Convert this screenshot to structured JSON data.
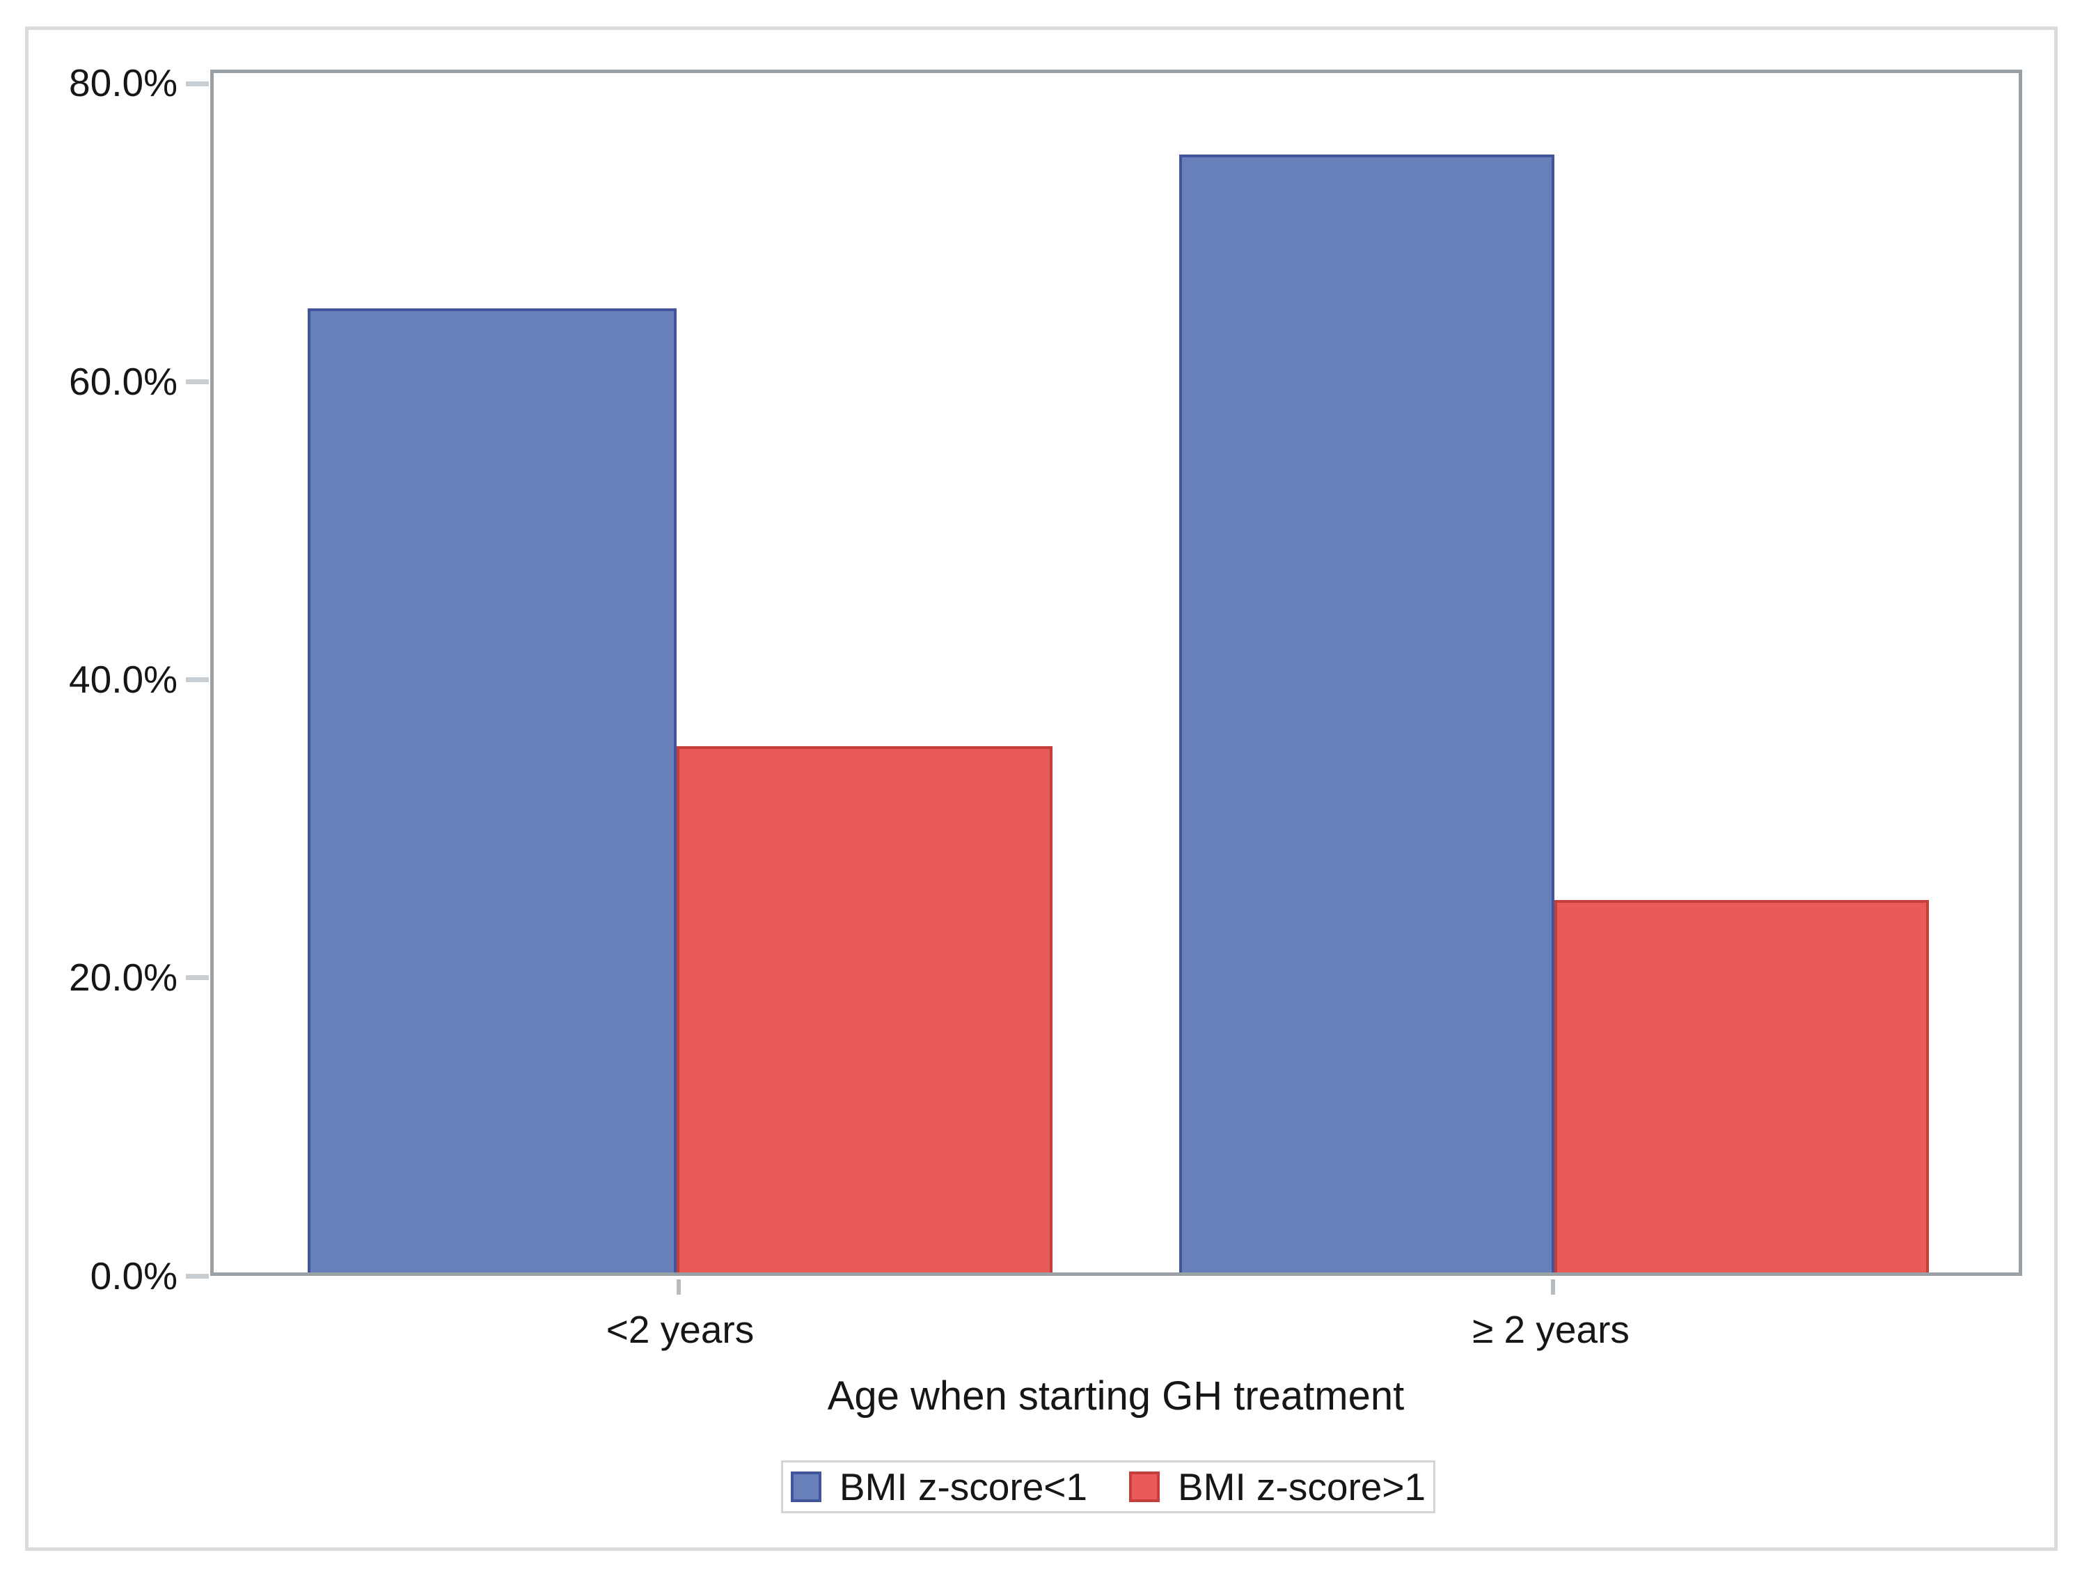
{
  "chart_data": {
    "type": "bar",
    "title": "",
    "categories": [
      "<2 years",
      "≥ 2 years"
    ],
    "series": [
      {
        "name": "BMI z-score<1",
        "color": "#6880ba",
        "border_color": "#44549c",
        "values": [
          64.7,
          75.0
        ]
      },
      {
        "name": "BMI z-score>1",
        "color": "#ea5a58",
        "border_color": "#c33f3c",
        "values": [
          35.3,
          25.0
        ]
      }
    ],
    "xlabel": "Age when starting GH treatment",
    "ylabel": "",
    "yticks_top_to_bottom": {
      "t0": "80.0%",
      "t1": "60.0%",
      "t2": "40.0%",
      "t3": "20.0%",
      "t4": "0.0%"
    },
    "ylim": [
      0,
      80
    ],
    "grid": false,
    "legend_position": "bottom"
  },
  "colors": {
    "plot_wall_border": "#99a1a7",
    "figure_border": "#dbdbdb",
    "tick_mark": "#c8cdd1",
    "text": "#161616",
    "background": "#ffffff"
  }
}
